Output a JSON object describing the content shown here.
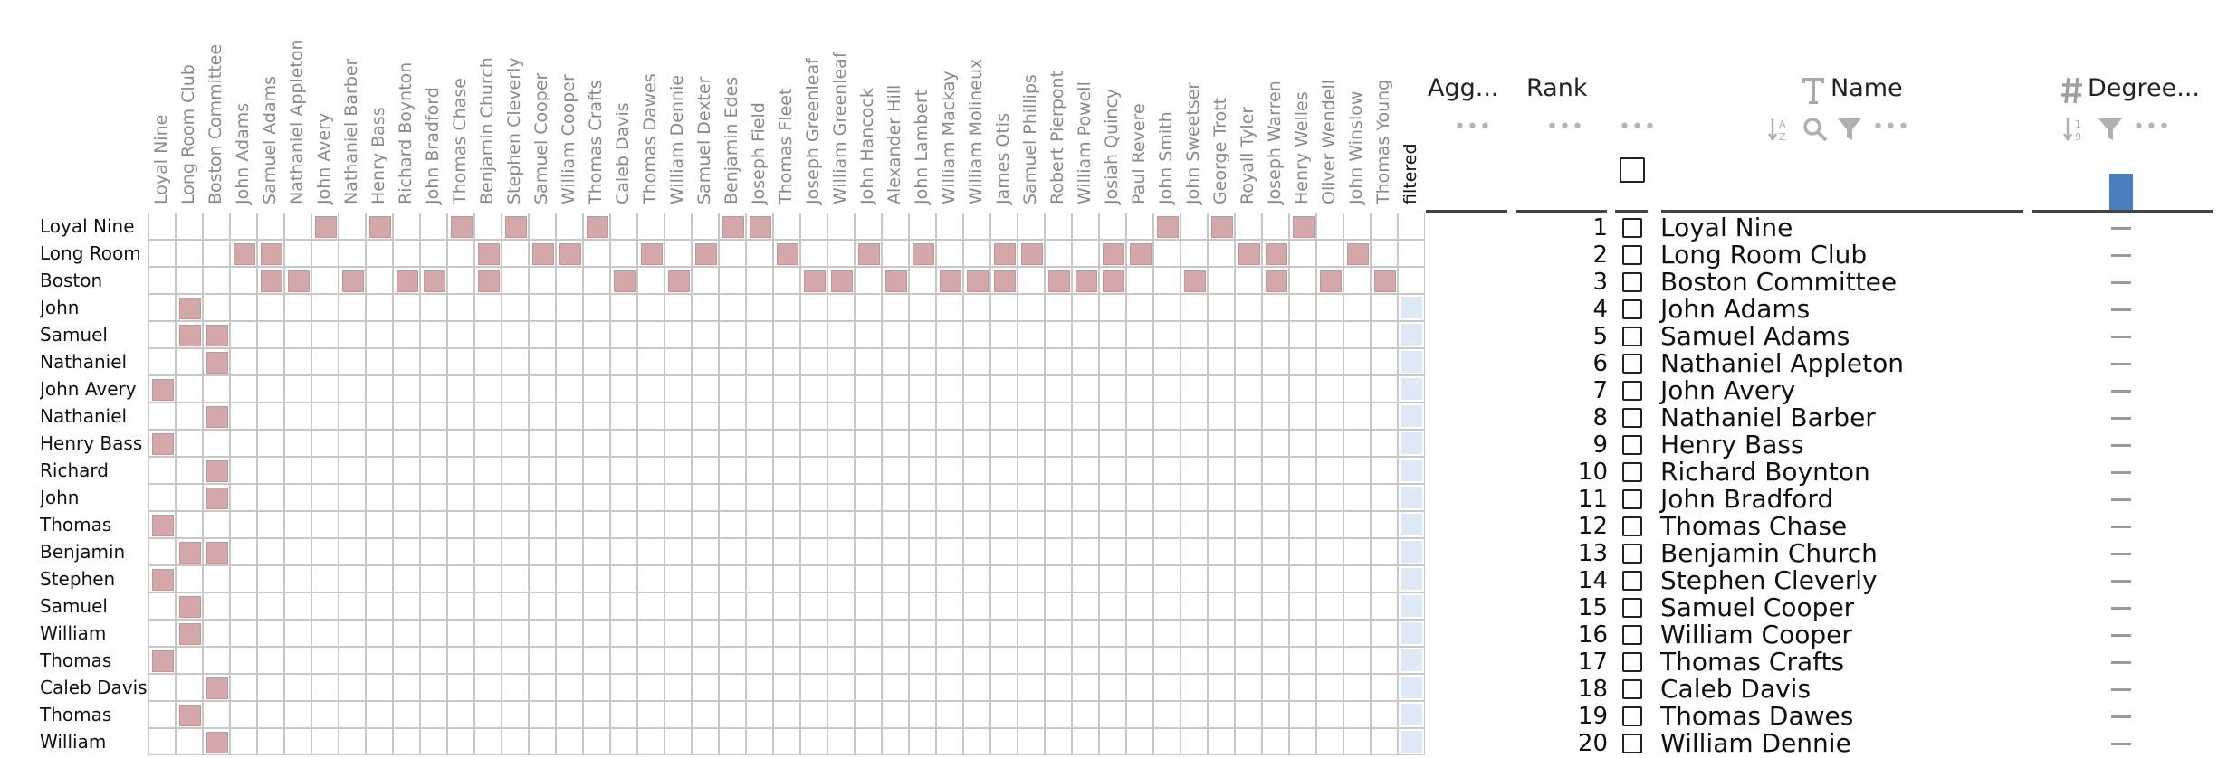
{
  "matrix": {
    "columns": [
      "Loyal Nine",
      "Long Room Club",
      "Boston Committee",
      "John Adams",
      "Samuel Adams",
      "Nathaniel Appleton",
      "John Avery",
      "Nathaniel Barber",
      "Henry Bass",
      "Richard Boynton",
      "John Bradford",
      "Thomas Chase",
      "Benjamin Church",
      "Stephen Cleverly",
      "Samuel Cooper",
      "William Cooper",
      "Thomas Crafts",
      "Caleb Davis",
      "Thomas Dawes",
      "William Dennie",
      "Samuel Dexter",
      "Benjamin Edes",
      "Joseph Field",
      "Thomas Fleet",
      "Joseph Greenleaf",
      "William Greenleaf",
      "John Hancock",
      "Alexander Hill",
      "John Lambert",
      "William Mackay",
      "William Molineux",
      "James Otis",
      "Samuel Phillips",
      "Robert Pierpont",
      "William Powell",
      "Josiah Quincy",
      "Paul Revere",
      "John Smith",
      "John Sweetser",
      "George Trott",
      "Royall Tyler",
      "Joseph Warren",
      "Henry Welles",
      "Oliver Wendell",
      "John Winslow",
      "Thomas Young"
    ],
    "filtered_label": "filtered",
    "rows": [
      {
        "label": "Loyal Nine",
        "cells": [
          6,
          8,
          11,
          13,
          16,
          21,
          22,
          37,
          39,
          42
        ],
        "filtered": false
      },
      {
        "label": "Long Room",
        "cells": [
          3,
          4,
          12,
          14,
          15,
          18,
          20,
          23,
          26,
          28,
          31,
          32,
          35,
          36,
          40,
          41,
          44
        ],
        "filtered": false
      },
      {
        "label": "Boston",
        "cells": [
          4,
          5,
          7,
          9,
          10,
          12,
          17,
          19,
          24,
          25,
          27,
          29,
          30,
          31,
          33,
          34,
          35,
          38,
          41,
          43,
          45
        ],
        "filtered": false
      },
      {
        "label": "John",
        "cells": [
          1
        ],
        "filtered": true
      },
      {
        "label": "Samuel",
        "cells": [
          1,
          2
        ],
        "filtered": true
      },
      {
        "label": "Nathaniel",
        "cells": [
          2
        ],
        "filtered": true
      },
      {
        "label": "John Avery",
        "cells": [
          0
        ],
        "filtered": true
      },
      {
        "label": "Nathaniel",
        "cells": [
          2
        ],
        "filtered": true
      },
      {
        "label": "Henry Bass",
        "cells": [
          0
        ],
        "filtered": true
      },
      {
        "label": "Richard",
        "cells": [
          2
        ],
        "filtered": true
      },
      {
        "label": "John",
        "cells": [
          2
        ],
        "filtered": true
      },
      {
        "label": "Thomas",
        "cells": [
          0
        ],
        "filtered": true
      },
      {
        "label": "Benjamin",
        "cells": [
          1,
          2
        ],
        "filtered": true
      },
      {
        "label": "Stephen",
        "cells": [
          0
        ],
        "filtered": true
      },
      {
        "label": "Samuel",
        "cells": [
          1
        ],
        "filtered": true
      },
      {
        "label": "William",
        "cells": [
          1
        ],
        "filtered": true
      },
      {
        "label": "Thomas",
        "cells": [
          0
        ],
        "filtered": true
      },
      {
        "label": "Caleb Davis",
        "cells": [
          2
        ],
        "filtered": true
      },
      {
        "label": "Thomas",
        "cells": [
          1
        ],
        "filtered": true
      },
      {
        "label": "William",
        "cells": [
          2
        ],
        "filtered": true
      }
    ]
  },
  "columns_header": {
    "agg": "Agg...",
    "rank": "Rank",
    "name": "Name",
    "degree": "Degree..."
  },
  "icons": {
    "name_type": "text-type-icon",
    "degree_type": "hash-icon",
    "sort": "sort-alpha-icon",
    "sort_num": "sort-numeric-icon",
    "search": "search-icon",
    "filter": "filter-icon",
    "more": "more-dots-icon"
  },
  "degree_summary_fraction": 0.95,
  "table": [
    {
      "rank": "1",
      "name": "Loyal Nine"
    },
    {
      "rank": "2",
      "name": "Long Room Club"
    },
    {
      "rank": "3",
      "name": "Boston Committee"
    },
    {
      "rank": "4",
      "name": "John Adams"
    },
    {
      "rank": "5",
      "name": "Samuel Adams"
    },
    {
      "rank": "6",
      "name": "Nathaniel Appleton"
    },
    {
      "rank": "7",
      "name": "John Avery"
    },
    {
      "rank": "8",
      "name": "Nathaniel Barber"
    },
    {
      "rank": "9",
      "name": "Henry Bass"
    },
    {
      "rank": "10",
      "name": "Richard Boynton"
    },
    {
      "rank": "11",
      "name": "John Bradford"
    },
    {
      "rank": "12",
      "name": "Thomas Chase"
    },
    {
      "rank": "13",
      "name": "Benjamin Church"
    },
    {
      "rank": "14",
      "name": "Stephen Cleverly"
    },
    {
      "rank": "15",
      "name": "Samuel Cooper"
    },
    {
      "rank": "16",
      "name": "William Cooper"
    },
    {
      "rank": "17",
      "name": "Thomas Crafts"
    },
    {
      "rank": "18",
      "name": "Caleb Davis"
    },
    {
      "rank": "19",
      "name": "Thomas Dawes"
    },
    {
      "rank": "20",
      "name": "William Dennie"
    }
  ]
}
